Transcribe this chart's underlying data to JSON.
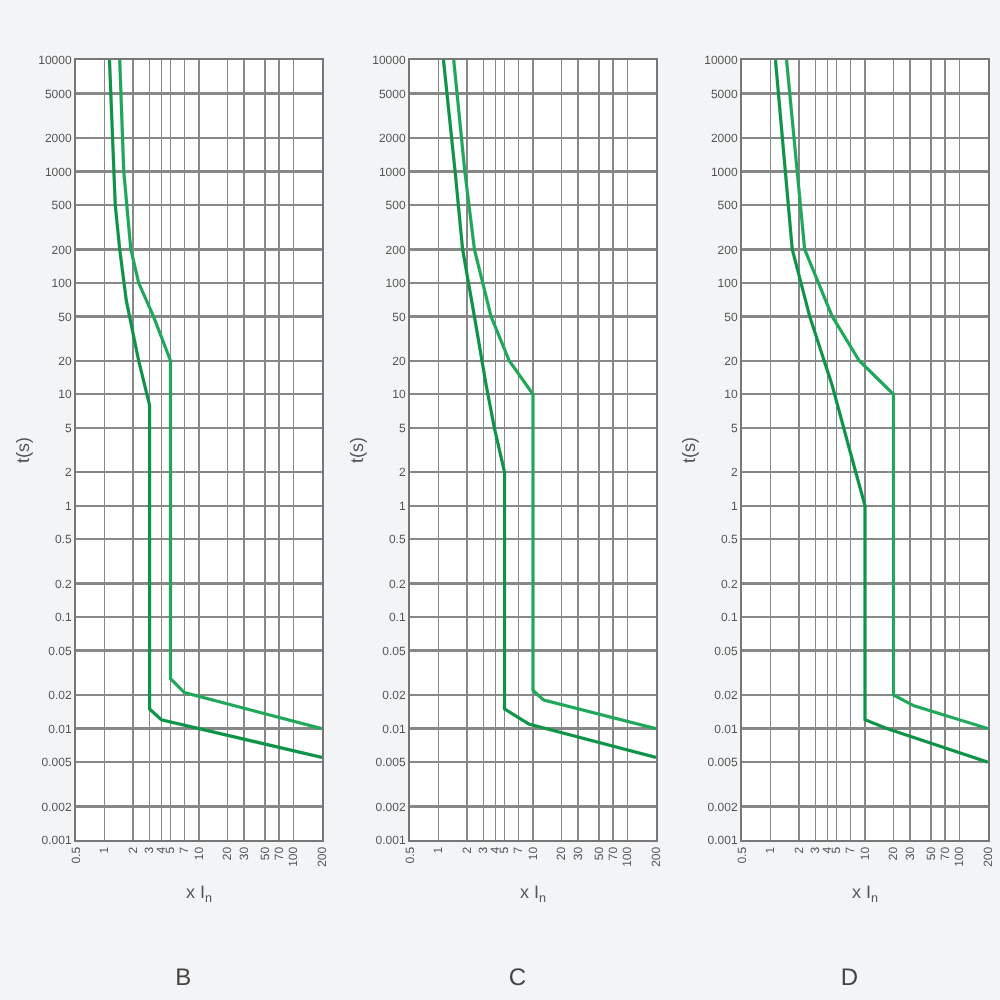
{
  "chart_data": [
    {
      "type": "line",
      "title": "B",
      "xlabel": "x I$_{n}$",
      "ylabel": "t(s)",
      "log": "xy",
      "grid": true,
      "marker": "none",
      "line_style": "solid",
      "xlim": [
        0.5,
        200
      ],
      "ylim": [
        0.001,
        10000
      ],
      "xticks": [
        0.5,
        1,
        2,
        3,
        4,
        5,
        7,
        10,
        20,
        30,
        50,
        70,
        100,
        200
      ],
      "yticks": [
        10000,
        5000,
        2000,
        1000,
        500,
        200,
        100,
        50,
        20,
        10,
        5,
        2,
        1,
        0.5,
        0.2,
        0.1,
        0.05,
        0.02,
        0.01,
        0.005,
        0.002,
        0.001
      ],
      "series": [
        {
          "color": "#0e9447",
          "x": [
            1.13,
            1.3,
            1.45,
            1.7,
            2.3,
            3,
            3,
            4,
            200
          ],
          "values": [
            10000,
            500,
            200,
            70,
            20,
            8,
            0.015,
            0.012,
            0.0055
          ]
        },
        {
          "color": "#1fa85a",
          "x": [
            1.45,
            1.6,
            1.9,
            2.3,
            3.3,
            5,
            5,
            7,
            200
          ],
          "values": [
            10000,
            1000,
            200,
            100,
            50,
            20,
            0.028,
            0.021,
            0.01
          ]
        }
      ]
    },
    {
      "type": "line",
      "title": "C",
      "xlabel": "x I$_{n}$",
      "ylabel": "t(s)",
      "log": "xy",
      "grid": true,
      "marker": "none",
      "line_style": "solid",
      "xlim": [
        0.5,
        200
      ],
      "ylim": [
        0.001,
        10000
      ],
      "xticks": [
        0.5,
        1,
        2,
        3,
        4,
        5,
        7,
        10,
        20,
        30,
        50,
        70,
        100,
        200
      ],
      "yticks": [
        10000,
        5000,
        2000,
        1000,
        500,
        200,
        100,
        50,
        20,
        10,
        5,
        2,
        1,
        0.5,
        0.2,
        0.1,
        0.05,
        0.02,
        0.01,
        0.005,
        0.002,
        0.001
      ],
      "series": [
        {
          "color": "#0e9447",
          "x": [
            1.13,
            1.5,
            1.8,
            2.4,
            3.2,
            3.9,
            5,
            5,
            9,
            200
          ],
          "values": [
            10000,
            1000,
            200,
            50,
            12,
            5,
            2,
            0.015,
            0.011,
            0.0055
          ]
        },
        {
          "color": "#1fa85a",
          "x": [
            1.45,
            1.9,
            2.4,
            3.6,
            5.6,
            10,
            10,
            13,
            200
          ],
          "values": [
            10000,
            1000,
            200,
            50,
            20,
            10,
            0.022,
            0.018,
            0.01
          ]
        }
      ]
    },
    {
      "type": "line",
      "title": "D",
      "xlabel": "x I$_{n}$",
      "ylabel": "t(s)",
      "log": "xy",
      "grid": true,
      "marker": "none",
      "line_style": "solid",
      "xlim": [
        0.5,
        200
      ],
      "ylim": [
        0.001,
        10000
      ],
      "xticks": [
        0.5,
        1,
        2,
        3,
        4,
        5,
        7,
        10,
        20,
        30,
        50,
        70,
        100,
        200
      ],
      "yticks": [
        10000,
        5000,
        2000,
        1000,
        500,
        200,
        100,
        50,
        20,
        10,
        5,
        2,
        1,
        0.5,
        0.2,
        0.1,
        0.05,
        0.02,
        0.01,
        0.005,
        0.002,
        0.001
      ],
      "series": [
        {
          "color": "#0e9447",
          "x": [
            1.13,
            1.7,
            2.6,
            4.5,
            7,
            10,
            10,
            17,
            200
          ],
          "values": [
            10000,
            200,
            50,
            12,
            3,
            1,
            0.012,
            0.01,
            0.005
          ]
        },
        {
          "color": "#1fa85a",
          "x": [
            1.48,
            2.3,
            4.5,
            8.7,
            20,
            20,
            33,
            200
          ],
          "values": [
            10000,
            200,
            50,
            20,
            10,
            0.02,
            0.016,
            0.01
          ]
        }
      ]
    }
  ]
}
